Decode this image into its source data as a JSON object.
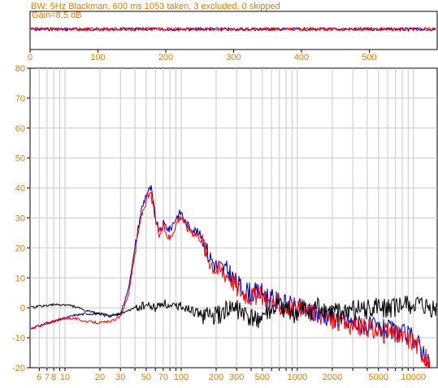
{
  "header": {
    "line1": "BW: 5Hz Blackman, 600 ms 1053 taken, 3 excluded, 0 skipped",
    "line2": "Gain=8.5 dB"
  },
  "colors": {
    "accent": "#e07a00",
    "series_blue": "#0000a0",
    "series_red": "#ff0000",
    "series_black": "#000000",
    "grid": "#c8c8c8"
  },
  "chart_data": [
    {
      "type": "line",
      "name": "time-strip",
      "xlim": [
        0,
        600
      ],
      "ylim": [
        -1,
        1
      ],
      "x_ticks": [
        0,
        100,
        200,
        300,
        400,
        500
      ],
      "x_tick_labels": [
        "0",
        "100",
        "200",
        "300",
        "400",
        "500"
      ],
      "series": [
        {
          "color": "blue",
          "x": [
            0,
            100,
            200,
            300,
            400,
            500,
            600
          ],
          "y": [
            0,
            0,
            0,
            0,
            0,
            0,
            0
          ]
        },
        {
          "color": "red",
          "x": [
            0,
            100,
            200,
            300,
            400,
            500,
            600
          ],
          "y": [
            0,
            0,
            0,
            0,
            0,
            0,
            0
          ]
        }
      ]
    },
    {
      "type": "line",
      "name": "spectrum",
      "xscale": "log",
      "xlim": [
        5,
        16000
      ],
      "ylim": [
        -20,
        80
      ],
      "y_ticks": [
        80,
        70,
        60,
        50,
        40,
        30,
        20,
        10,
        0,
        -10,
        -20
      ],
      "y_tick_labels": [
        "80",
        "70",
        "60",
        "50",
        "40",
        "30",
        "20",
        "10",
        "0",
        "-10",
        "-20"
      ],
      "x_tick_labels": [
        {
          "v": 6,
          "t": "6"
        },
        {
          "v": 7,
          "t": "7"
        },
        {
          "v": 8,
          "t": "8"
        },
        {
          "v": 10,
          "t": "10"
        },
        {
          "v": 20,
          "t": "20"
        },
        {
          "v": 30,
          "t": "30"
        },
        {
          "v": 50,
          "t": "50"
        },
        {
          "v": 70,
          "t": "70"
        },
        {
          "v": 100,
          "t": "100"
        },
        {
          "v": 200,
          "t": "200"
        },
        {
          "v": 300,
          "t": "300"
        },
        {
          "v": 500,
          "t": "500"
        },
        {
          "v": 1000,
          "t": "1000"
        },
        {
          "v": 2000,
          "t": "2000"
        },
        {
          "v": 5000,
          "t": "5000"
        },
        {
          "v": 10000,
          "t": "10000"
        }
      ],
      "series": [
        {
          "color": "blue",
          "x": [
            5,
            6,
            7,
            8,
            10,
            12,
            15,
            20,
            25,
            30,
            35,
            40,
            45,
            50,
            55,
            60,
            65,
            70,
            80,
            90,
            100,
            110,
            130,
            150,
            170,
            200,
            230,
            260,
            300,
            350,
            400,
            500,
            600,
            700,
            800,
            1000,
            1500,
            2000,
            3000,
            5000,
            7000,
            10000,
            12000,
            14000
          ],
          "y": [
            -7,
            -6,
            -5,
            -4.5,
            -3.5,
            -2.5,
            -2,
            -2,
            -2.5,
            -2,
            6,
            20,
            32,
            38,
            40,
            30,
            25,
            28,
            26,
            30,
            32,
            28,
            26,
            24,
            18,
            14,
            13,
            12,
            8,
            6,
            5,
            5,
            3,
            2,
            1,
            0,
            -2,
            -3,
            -5,
            -7,
            -8,
            -10,
            -14,
            -20
          ]
        },
        {
          "color": "red",
          "x": [
            5,
            6,
            7,
            8,
            10,
            12,
            15,
            20,
            25,
            30,
            35,
            40,
            45,
            50,
            55,
            60,
            65,
            70,
            80,
            90,
            100,
            110,
            130,
            150,
            170,
            200,
            230,
            260,
            300,
            350,
            400,
            500,
            600,
            700,
            800,
            1000,
            1500,
            2000,
            3000,
            5000,
            7000,
            10000,
            12000,
            14000
          ],
          "y": [
            -7,
            -6,
            -5.5,
            -4.5,
            -3.5,
            -3.5,
            -4.5,
            -5,
            -4.5,
            -3,
            4,
            18,
            30,
            36,
            38,
            29,
            24,
            27,
            23,
            28,
            31,
            27,
            25,
            23,
            17,
            13,
            12,
            11,
            7,
            5,
            4,
            4,
            2,
            1,
            0,
            -1,
            -2,
            -4,
            -6,
            -8,
            -9,
            -11,
            -15,
            -20
          ]
        },
        {
          "color": "black",
          "x": [
            5,
            6,
            8,
            10,
            12,
            15,
            20,
            25,
            30,
            40,
            50,
            60,
            70,
            80,
            100,
            120,
            150,
            200,
            250,
            300,
            400,
            500,
            700,
            1000,
            1500,
            2000,
            3000,
            5000,
            7000,
            10000,
            12000,
            16000
          ],
          "y": [
            0,
            0.5,
            1,
            1,
            0.5,
            -1,
            -2,
            -3,
            -2,
            0,
            1,
            0,
            2,
            0,
            1,
            -1,
            -2,
            -3,
            -1,
            0,
            -4,
            -3,
            0,
            -2,
            0,
            -2,
            -1,
            0,
            0,
            1,
            0,
            -1
          ]
        }
      ]
    }
  ]
}
